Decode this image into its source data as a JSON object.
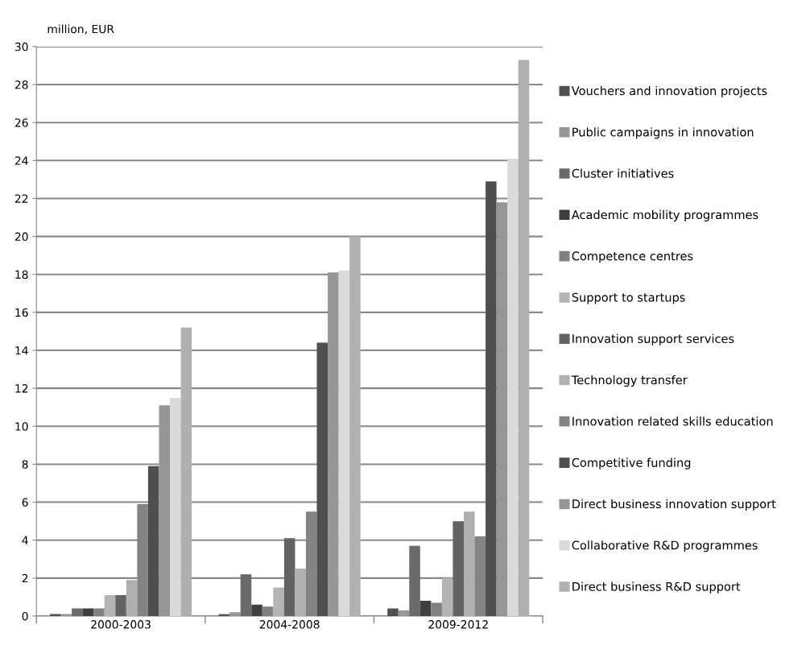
{
  "chart_data": {
    "type": "bar",
    "ylabel": "million, EUR",
    "categories": [
      "2000-2003",
      "2004-2008",
      "2009-2012"
    ],
    "series": [
      {
        "name": "Vouchers and innovation projects",
        "color": "#505050",
        "values": [
          0.1,
          0.1,
          0.4
        ]
      },
      {
        "name": "Public campaigns in innovation",
        "color": "#969696",
        "values": [
          0.1,
          0.2,
          0.3
        ]
      },
      {
        "name": "Cluster initiatives",
        "color": "#6a6a6a",
        "values": [
          0.4,
          2.2,
          3.7
        ]
      },
      {
        "name": "Academic mobility programmes",
        "color": "#3f3f3f",
        "values": [
          0.4,
          0.6,
          0.8
        ]
      },
      {
        "name": "Competence centres",
        "color": "#818181",
        "values": [
          0.4,
          0.5,
          0.7
        ]
      },
      {
        "name": "Support to startups",
        "color": "#b4b4b4",
        "values": [
          1.1,
          1.5,
          2.0
        ]
      },
      {
        "name": "Innovation support services",
        "color": "#636363",
        "values": [
          1.1,
          4.1,
          5.0
        ]
      },
      {
        "name": "Technology transfer",
        "color": "#b0b0b0",
        "values": [
          1.9,
          2.5,
          5.5
        ]
      },
      {
        "name": "Innovation related skills education",
        "color": "#838383",
        "values": [
          5.9,
          5.5,
          4.2
        ]
      },
      {
        "name": "Competitive funding",
        "color": "#4f4f4f",
        "values": [
          7.9,
          14.4,
          22.9
        ]
      },
      {
        "name": "Direct business innovation support",
        "color": "#969696",
        "values": [
          11.1,
          18.1,
          21.8
        ]
      },
      {
        "name": "Collaborative R&D programmes",
        "color": "#dadada",
        "values": [
          11.5,
          18.2,
          24.1
        ]
      },
      {
        "name": "Direct business R&D support",
        "color": "#b0b0b0",
        "values": [
          15.2,
          20.0,
          29.3
        ]
      }
    ],
    "ylim": [
      0,
      30
    ],
    "yticks": [
      0,
      2,
      4,
      6,
      8,
      10,
      12,
      14,
      16,
      18,
      20,
      22,
      24,
      26,
      28,
      30
    ],
    "grid": "y",
    "legend": "right"
  }
}
